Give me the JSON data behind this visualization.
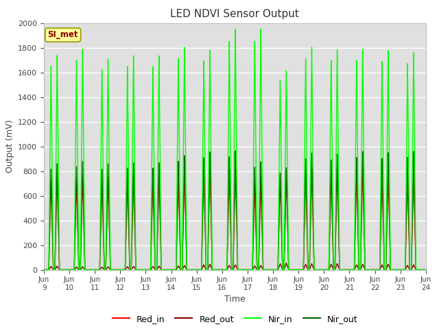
{
  "title": "LED NDVI Sensor Output",
  "xlabel": "Time",
  "ylabel": "Output (mV)",
  "ylim": [
    0,
    2000
  ],
  "xlim_days": [
    9,
    24
  ],
  "bg_color": "#e0e0e0",
  "grid_color": "white",
  "annotation_text": "SI_met",
  "annotation_bg": "#ffff99",
  "annotation_border": "#999900",
  "series": {
    "Red_in": {
      "color": "#ff0000",
      "lw": 1.0
    },
    "Red_out": {
      "color": "#8b0000",
      "lw": 1.0
    },
    "Nir_in": {
      "color": "#00ff00",
      "lw": 1.0
    },
    "Nir_out": {
      "color": "#006400",
      "lw": 1.0
    }
  },
  "tick_labels": [
    "Jun\n 9",
    "Jun\n10",
    "Jun\n11",
    "Jun\n12",
    "Jun\n13",
    "Jun\n14",
    "Jun\n15",
    "Jun\n16",
    "Jun\n17",
    "Jun\n18",
    "Jun\n19",
    "Jun\n20",
    "Jun\n21",
    "Jun\n22",
    "Jun\n23",
    "Jun\n24"
  ],
  "num_cycles": 15,
  "cycle_peaks_red_in": [
    780,
    760,
    760,
    780,
    800,
    810,
    880,
    860,
    720,
    820,
    830,
    840,
    840,
    800,
    790
  ],
  "cycle_peaks_red_out": [
    30,
    25,
    25,
    28,
    30,
    35,
    45,
    40,
    35,
    55,
    50,
    50,
    45,
    45,
    40
  ],
  "cycle_peaks_nir_in": [
    1740,
    1790,
    1710,
    1740,
    1740,
    1810,
    1790,
    1960,
    1960,
    1620,
    1810,
    1790,
    1790,
    1780,
    1760
  ],
  "cycle_peaks_nir_out": [
    860,
    880,
    860,
    870,
    870,
    930,
    960,
    970,
    880,
    830,
    950,
    940,
    960,
    950,
    960
  ]
}
